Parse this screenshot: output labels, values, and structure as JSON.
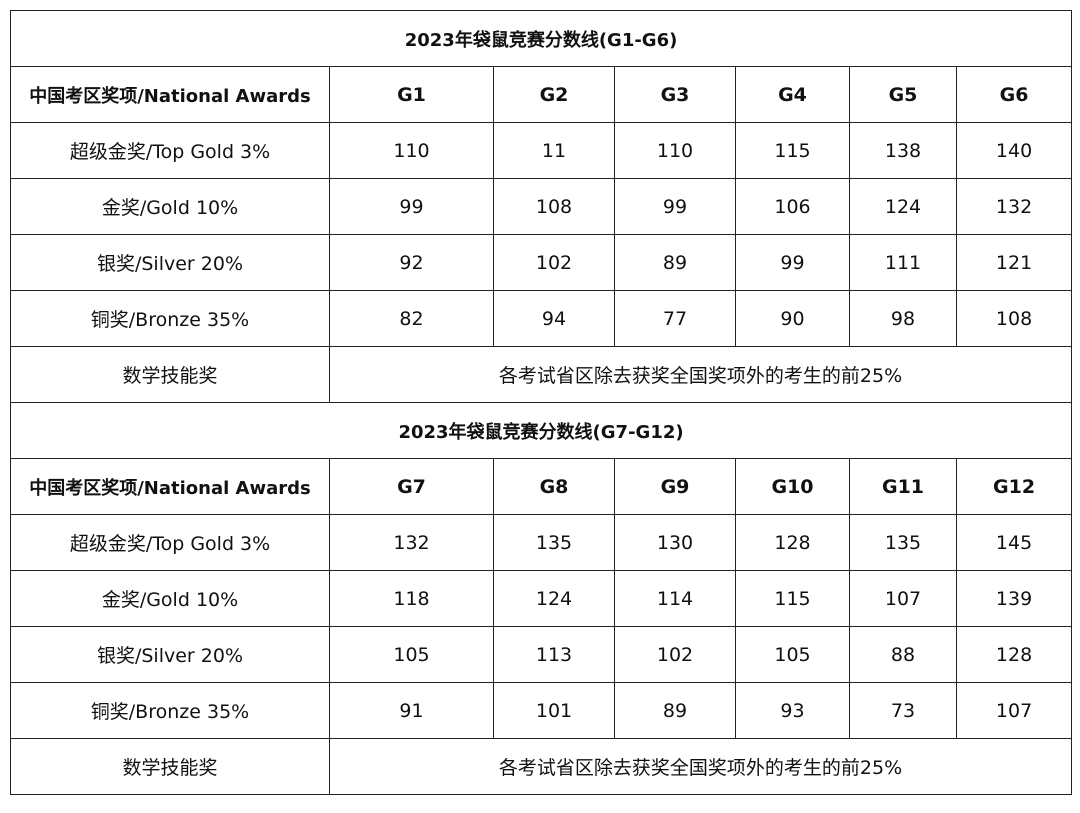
{
  "sections": [
    {
      "title": "2023年袋鼠竞赛分数线(G1-G6)",
      "header_label": "中国考区奖项/National Awards",
      "grades": [
        "G1",
        "G2",
        "G3",
        "G4",
        "G5",
        "G6"
      ],
      "rows": [
        {
          "label": "超级金奖/Top Gold 3%",
          "values": [
            "110",
            "11",
            "110",
            "115",
            "138",
            "140"
          ]
        },
        {
          "label": "金奖/Gold 10%",
          "values": [
            "99",
            "108",
            "99",
            "106",
            "124",
            "132"
          ]
        },
        {
          "label": "银奖/Silver 20%",
          "values": [
            "92",
            "102",
            "89",
            "99",
            "111",
            "121"
          ]
        },
        {
          "label": "铜奖/Bronze 35%",
          "values": [
            "82",
            "94",
            "77",
            "90",
            "98",
            "108"
          ]
        }
      ],
      "skill_award": {
        "label": "数学技能奖",
        "note": "各考试省区除去获奖全国奖项外的考生的前25%"
      }
    },
    {
      "title": "2023年袋鼠竞赛分数线(G7-G12)",
      "header_label": "中国考区奖项/National Awards",
      "grades": [
        "G7",
        "G8",
        "G9",
        "G10",
        "G11",
        "G12"
      ],
      "rows": [
        {
          "label": "超级金奖/Top Gold 3%",
          "values": [
            "132",
            "135",
            "130",
            "128",
            "135",
            "145"
          ]
        },
        {
          "label": "金奖/Gold 10%",
          "values": [
            "118",
            "124",
            "114",
            "115",
            "107",
            "139"
          ]
        },
        {
          "label": "银奖/Silver 20%",
          "values": [
            "105",
            "113",
            "102",
            "105",
            "88",
            "128"
          ]
        },
        {
          "label": "铜奖/Bronze 35%",
          "values": [
            "91",
            "101",
            "89",
            "93",
            "73",
            "107"
          ]
        }
      ],
      "skill_award": {
        "label": "数学技能奖",
        "note": "各考试省区除去获奖全国奖项外的考生的前25%"
      }
    }
  ]
}
